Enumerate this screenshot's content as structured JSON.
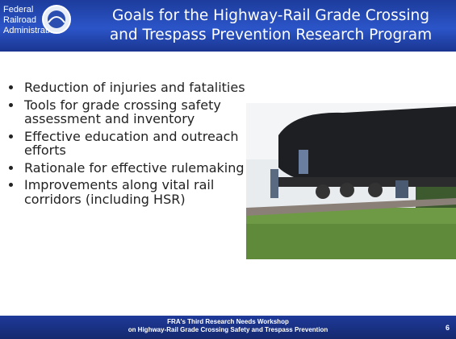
{
  "header": {
    "agency": [
      "Federal",
      "Railroad",
      "Administration"
    ],
    "title": [
      "Goals for the Highway-Rail Grade Crossing",
      "and Trespass Prevention Research Program"
    ]
  },
  "bullets": [
    "Reduction of injuries and fatalities",
    "Tools for grade crossing safety assessment and inventory",
    "Effective education and outreach efforts",
    "Rationale for effective rulemaking",
    "Improvements along vital rail corridors (including HSR)"
  ],
  "footer": {
    "lines": [
      "FRA's Third Research Needs Workshop",
      "on Highway-Rail Grade Crossing Safety and Trespass Prevention"
    ],
    "page": "6"
  }
}
